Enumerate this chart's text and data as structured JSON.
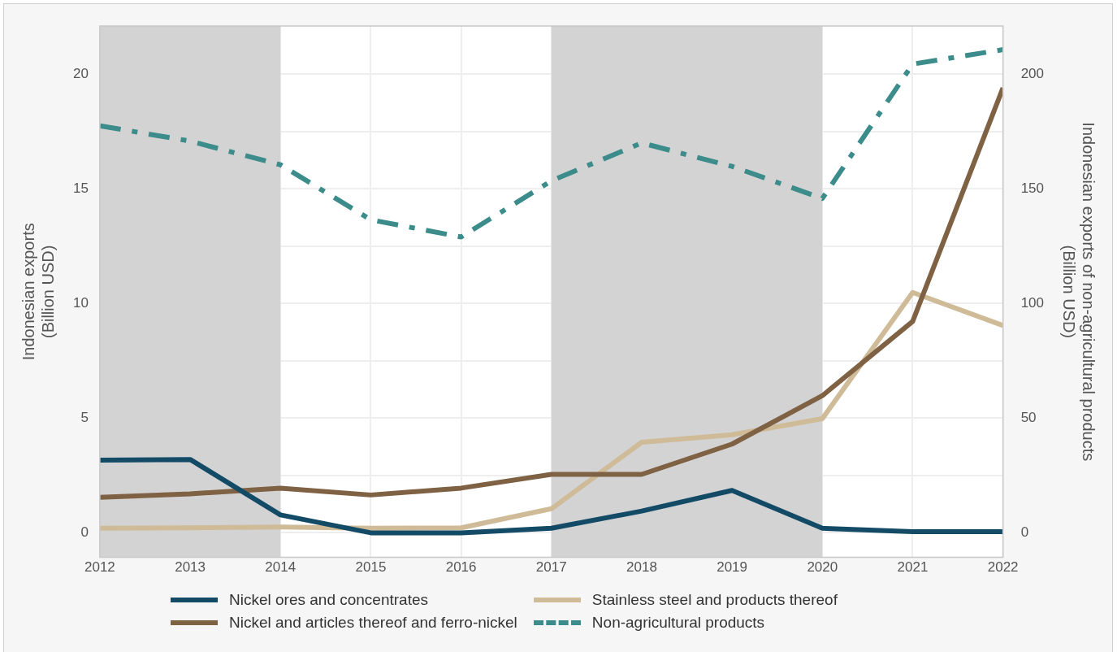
{
  "chart_data": {
    "type": "line",
    "ylabel": "Indonesian exports\n(Billion USD)",
    "y2label": "Indonesian exports of non-agricultural products\n(Billion USD)",
    "x": [
      2012,
      2013,
      2014,
      2015,
      2016,
      2017,
      2018,
      2019,
      2020,
      2021,
      2022
    ],
    "series": [
      {
        "name": "Nickel ores and concentrates",
        "color": "#134b67",
        "values": [
          3.17,
          3.2,
          0.78,
          0,
          0,
          0.2,
          0.95,
          1.85,
          0.2,
          0.05,
          0.05
        ]
      },
      {
        "name": "Nickel and articles thereof and ferro-nickel",
        "color": "#7f6144",
        "values": [
          1.55,
          1.7,
          1.95,
          1.65,
          1.95,
          2.55,
          2.55,
          3.87,
          5.98,
          9.22,
          19.4
        ]
      },
      {
        "name": "Stainless steel and products thereof",
        "color": "#cfbb97",
        "values": [
          0.2,
          0.22,
          0.25,
          0.2,
          0.22,
          1.05,
          3.95,
          4.28,
          4.98,
          10.48,
          9.04
        ]
      },
      {
        "name": "Non-agricultural products",
        "color": "#3b8c8a",
        "axis": "y2",
        "line_style": "dashed",
        "values": [
          177.5,
          170.8,
          160.5,
          136.5,
          129,
          153.5,
          170,
          159.8,
          145.8,
          204.4,
          210.7
        ]
      }
    ],
    "xlim": [
      2012,
      2022
    ],
    "xticks": [
      2012,
      2013,
      2014,
      2015,
      2016,
      2017,
      2018,
      2019,
      2020,
      2021,
      2022
    ],
    "ylim": [
      -1.07,
      22.1
    ],
    "yticks": [
      0,
      {
        "value": 2.5,
        "label": null
      },
      5,
      {
        "value": 7.5,
        "label": null
      },
      10,
      {
        "value": 12.5,
        "label": null
      },
      15,
      {
        "value": 17.5,
        "label": null
      },
      20
    ],
    "y2lim": [
      -10.7,
      221
    ],
    "y2ticks": [
      0,
      50,
      100,
      150,
      200
    ],
    "bands": [
      {
        "axis": "x",
        "from": 2012,
        "to": 2014,
        "color": "#d3d3d3"
      },
      {
        "axis": "x",
        "from": 2017,
        "to": 2020,
        "color": "#d3d3d3"
      }
    ],
    "grid": true,
    "legend": "bottom",
    "marker": "none",
    "line_style": "solid"
  }
}
